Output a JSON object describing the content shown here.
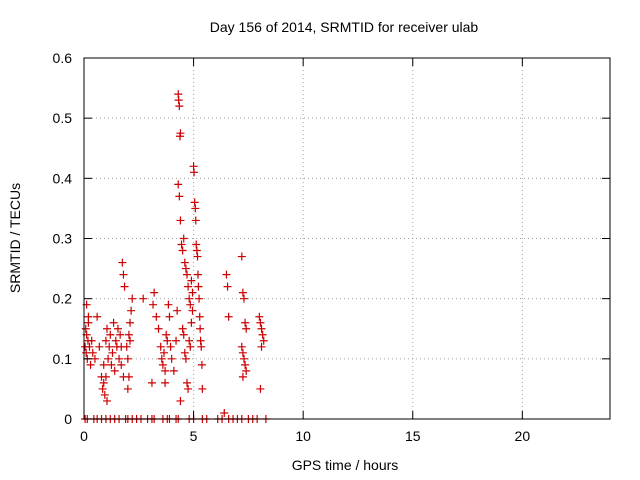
{
  "chart_data": {
    "type": "scatter",
    "title": "Day 156 of 2014, SRMTID for receiver ulab",
    "xlabel": "GPS time / hours",
    "ylabel": "SRMTID / TECUs",
    "xlim": [
      0,
      24
    ],
    "ylim": [
      0,
      0.6
    ],
    "xticks": [
      0,
      5,
      10,
      15,
      20
    ],
    "yticks": [
      0,
      0.1,
      0.2,
      0.3,
      0.4,
      0.5,
      0.6
    ],
    "xtick_labels": [
      "0",
      "5",
      "10",
      "15",
      "20"
    ],
    "ytick_labels": [
      "0",
      "0.1",
      "0.2",
      "0.3",
      "0.4",
      "0.5",
      "0.6"
    ],
    "grid": true,
    "marker": "+",
    "color": "#cc0000",
    "series": [
      {
        "name": "SRMTID",
        "points": [
          [
            0.05,
            0.0
          ],
          [
            0.15,
            0.0
          ],
          [
            0.45,
            0.0
          ],
          [
            0.6,
            0.0
          ],
          [
            0.8,
            0.0
          ],
          [
            1.0,
            0.0
          ],
          [
            1.2,
            0.0
          ],
          [
            1.4,
            0.0
          ],
          [
            1.6,
            0.0
          ],
          [
            1.9,
            0.0
          ],
          [
            2.0,
            0.0
          ],
          [
            2.2,
            0.0
          ],
          [
            2.4,
            0.0
          ],
          [
            2.6,
            0.0
          ],
          [
            2.9,
            0.0
          ],
          [
            3.1,
            0.0
          ],
          [
            3.2,
            0.0
          ],
          [
            3.6,
            0.0
          ],
          [
            3.8,
            0.0
          ],
          [
            3.9,
            0.0
          ],
          [
            4.2,
            0.0
          ],
          [
            4.3,
            0.0
          ],
          [
            4.8,
            0.0
          ],
          [
            5.0,
            0.0
          ],
          [
            5.4,
            0.0
          ],
          [
            5.6,
            0.0
          ],
          [
            6.1,
            0.0
          ],
          [
            6.3,
            0.0
          ],
          [
            6.4,
            0.01
          ],
          [
            6.6,
            0.0
          ],
          [
            6.8,
            0.0
          ],
          [
            7.0,
            0.0
          ],
          [
            7.2,
            0.0
          ],
          [
            7.5,
            0.0
          ],
          [
            7.7,
            0.0
          ],
          [
            7.9,
            0.0
          ],
          [
            8.3,
            0.0
          ],
          [
            0.05,
            0.12
          ],
          [
            0.08,
            0.15
          ],
          [
            0.1,
            0.11
          ],
          [
            0.12,
            0.14
          ],
          [
            0.15,
            0.1
          ],
          [
            0.18,
            0.13
          ],
          [
            0.2,
            0.17
          ],
          [
            0.25,
            0.12
          ],
          [
            0.3,
            0.09
          ],
          [
            0.35,
            0.13
          ],
          [
            0.4,
            0.11
          ],
          [
            0.5,
            0.1
          ],
          [
            0.12,
            0.19
          ],
          [
            0.2,
            0.16
          ],
          [
            0.6,
            0.17
          ],
          [
            0.7,
            0.12
          ],
          [
            0.8,
            0.07
          ],
          [
            0.85,
            0.05
          ],
          [
            0.9,
            0.06
          ],
          [
            0.95,
            0.04
          ],
          [
            1.0,
            0.07
          ],
          [
            1.05,
            0.03
          ],
          [
            0.9,
            0.09
          ],
          [
            1.0,
            0.13
          ],
          [
            1.05,
            0.15
          ],
          [
            1.1,
            0.1
          ],
          [
            1.15,
            0.12
          ],
          [
            1.2,
            0.14
          ],
          [
            1.25,
            0.09
          ],
          [
            1.3,
            0.11
          ],
          [
            1.35,
            0.16
          ],
          [
            1.4,
            0.08
          ],
          [
            1.45,
            0.13
          ],
          [
            1.5,
            0.12
          ],
          [
            1.55,
            0.15
          ],
          [
            1.6,
            0.1
          ],
          [
            1.65,
            0.14
          ],
          [
            1.7,
            0.12
          ],
          [
            1.75,
            0.26
          ],
          [
            1.8,
            0.24
          ],
          [
            1.85,
            0.22
          ],
          [
            1.7,
            0.09
          ],
          [
            1.8,
            0.07
          ],
          [
            1.95,
            0.12
          ],
          [
            2.0,
            0.1
          ],
          [
            2.05,
            0.14
          ],
          [
            2.1,
            0.13
          ],
          [
            2.15,
            0.18
          ],
          [
            2.2,
            0.2
          ],
          [
            2.1,
            0.16
          ],
          [
            2.05,
            0.07
          ],
          [
            2.0,
            0.05
          ],
          [
            2.7,
            0.2
          ],
          [
            3.1,
            0.06
          ],
          [
            3.15,
            0.19
          ],
          [
            3.2,
            0.21
          ],
          [
            3.3,
            0.17
          ],
          [
            3.4,
            0.15
          ],
          [
            3.5,
            0.12
          ],
          [
            3.55,
            0.1
          ],
          [
            3.6,
            0.09
          ],
          [
            3.65,
            0.11
          ],
          [
            3.7,
            0.08
          ],
          [
            3.75,
            0.14
          ],
          [
            3.8,
            0.13
          ],
          [
            3.85,
            0.19
          ],
          [
            3.9,
            0.17
          ],
          [
            3.95,
            0.12
          ],
          [
            4.0,
            0.1
          ],
          [
            3.7,
            0.06
          ],
          [
            4.1,
            0.08
          ],
          [
            4.2,
            0.13
          ],
          [
            4.25,
            0.18
          ],
          [
            4.3,
            0.54
          ],
          [
            4.32,
            0.53
          ],
          [
            4.35,
            0.52
          ],
          [
            4.38,
            0.47
          ],
          [
            4.4,
            0.475
          ],
          [
            4.3,
            0.39
          ],
          [
            4.35,
            0.37
          ],
          [
            4.4,
            0.33
          ],
          [
            4.45,
            0.29
          ],
          [
            4.5,
            0.28
          ],
          [
            4.55,
            0.3
          ],
          [
            4.6,
            0.26
          ],
          [
            4.65,
            0.25
          ],
          [
            4.7,
            0.24
          ],
          [
            4.75,
            0.22
          ],
          [
            4.8,
            0.2
          ],
          [
            4.85,
            0.19
          ],
          [
            4.9,
            0.23
          ],
          [
            4.95,
            0.21
          ],
          [
            5.0,
            0.42
          ],
          [
            5.02,
            0.41
          ],
          [
            5.05,
            0.36
          ],
          [
            5.08,
            0.35
          ],
          [
            5.1,
            0.33
          ],
          [
            5.12,
            0.29
          ],
          [
            5.15,
            0.28
          ],
          [
            5.18,
            0.27
          ],
          [
            5.2,
            0.24
          ],
          [
            5.22,
            0.22
          ],
          [
            5.25,
            0.2
          ],
          [
            5.28,
            0.17
          ],
          [
            5.3,
            0.15
          ],
          [
            5.32,
            0.13
          ],
          [
            5.35,
            0.12
          ],
          [
            5.38,
            0.09
          ],
          [
            5.4,
            0.05
          ],
          [
            4.5,
            0.15
          ],
          [
            4.55,
            0.14
          ],
          [
            4.6,
            0.11
          ],
          [
            4.65,
            0.1
          ],
          [
            4.7,
            0.06
          ],
          [
            4.75,
            0.05
          ],
          [
            4.8,
            0.13
          ],
          [
            4.85,
            0.12
          ],
          [
            4.9,
            0.16
          ],
          [
            4.95,
            0.18
          ],
          [
            4.4,
            0.03
          ],
          [
            6.5,
            0.24
          ],
          [
            6.55,
            0.22
          ],
          [
            6.6,
            0.17
          ],
          [
            7.2,
            0.27
          ],
          [
            7.25,
            0.21
          ],
          [
            7.3,
            0.2
          ],
          [
            7.35,
            0.16
          ],
          [
            7.4,
            0.15
          ],
          [
            7.2,
            0.12
          ],
          [
            7.25,
            0.11
          ],
          [
            7.3,
            0.1
          ],
          [
            7.35,
            0.09
          ],
          [
            7.4,
            0.08
          ],
          [
            7.25,
            0.07
          ],
          [
            8.0,
            0.17
          ],
          [
            8.05,
            0.16
          ],
          [
            8.1,
            0.15
          ],
          [
            8.15,
            0.14
          ],
          [
            8.2,
            0.13
          ],
          [
            8.1,
            0.12
          ],
          [
            8.05,
            0.05
          ]
        ]
      }
    ]
  }
}
